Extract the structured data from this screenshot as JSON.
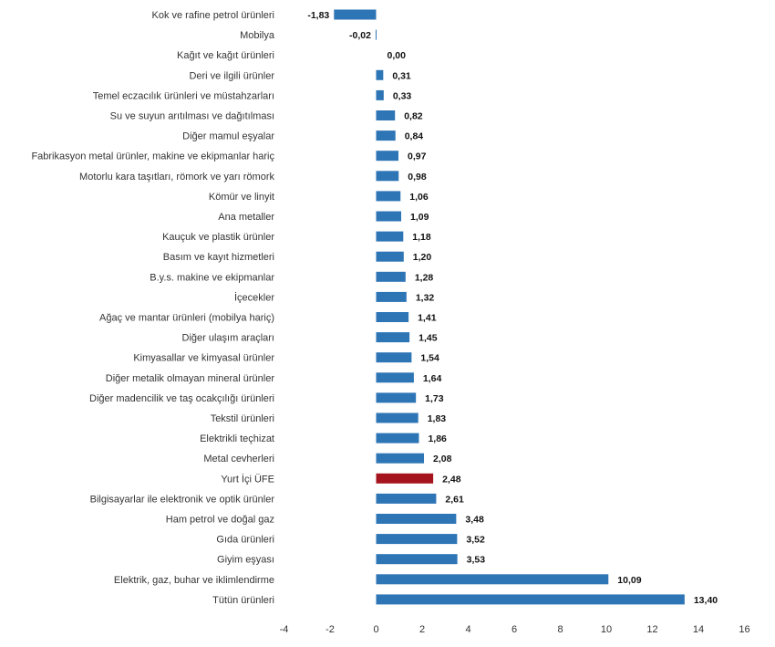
{
  "chart_data": {
    "type": "bar",
    "orientation": "horizontal",
    "title": "",
    "xlabel": "",
    "ylabel": "",
    "xlim": [
      -4,
      16
    ],
    "x_ticks": [
      "-4",
      "-2",
      "0",
      "2",
      "4",
      "6",
      "8",
      "10",
      "12",
      "14",
      "16"
    ],
    "grid": false,
    "legend": "none",
    "colors": {
      "default": "#2e75b6",
      "highlight": "#a5141c"
    },
    "highlight_category": "Yurt İçi ÜFE",
    "categories": [
      "Kok ve rafine petrol ürünleri",
      "Mobilya",
      "Kağıt ve kağıt ürünleri",
      "Deri ve ilgili ürünler",
      "Temel eczacılık ürünleri ve müstahzarları",
      "Su ve suyun arıtılması ve dağıtılması",
      "Diğer mamul eşyalar",
      "Fabrikasyon metal ürünler, makine ve ekipmanlar hariç",
      "Motorlu kara taşıtları, römork ve yarı römork",
      "Kömür ve linyit",
      "Ana metaller",
      "Kauçuk ve plastik ürünler",
      "Basım ve kayıt hizmetleri",
      "B.y.s. makine ve ekipmanlar",
      "İçecekler",
      "Ağaç ve mantar ürünleri (mobilya hariç)",
      "Diğer ulaşım araçları",
      "Kimyasallar ve kimyasal ürünler",
      "Diğer metalik olmayan mineral ürünler",
      "Diğer madencilik ve taş ocakçılığı ürünleri",
      "Tekstil ürünleri",
      "Elektrikli teçhizat",
      "Metal cevherleri",
      "Yurt İçi ÜFE",
      "Bilgisayarlar ile elektronik ve optik ürünler",
      "Ham petrol ve doğal gaz",
      "Gıda ürünleri",
      "Giyim eşyası",
      "Elektrik, gaz, buhar ve iklimlendirme",
      "Tütün ürünleri"
    ],
    "values": [
      -1.83,
      -0.02,
      0.0,
      0.31,
      0.33,
      0.82,
      0.84,
      0.97,
      0.98,
      1.06,
      1.09,
      1.18,
      1.2,
      1.28,
      1.32,
      1.41,
      1.45,
      1.54,
      1.64,
      1.73,
      1.83,
      1.86,
      2.08,
      2.48,
      2.61,
      3.48,
      3.52,
      3.53,
      10.09,
      13.4
    ],
    "value_labels": [
      "-1,83",
      "-0,02",
      "0,00",
      "0,31",
      "0,33",
      "0,82",
      "0,84",
      "0,97",
      "0,98",
      "1,06",
      "1,09",
      "1,18",
      "1,20",
      "1,28",
      "1,32",
      "1,41",
      "1,45",
      "1,54",
      "1,64",
      "1,73",
      "1,83",
      "1,86",
      "2,08",
      "2,48",
      "2,61",
      "3,48",
      "3,52",
      "3,53",
      "10,09",
      "13,40"
    ]
  }
}
